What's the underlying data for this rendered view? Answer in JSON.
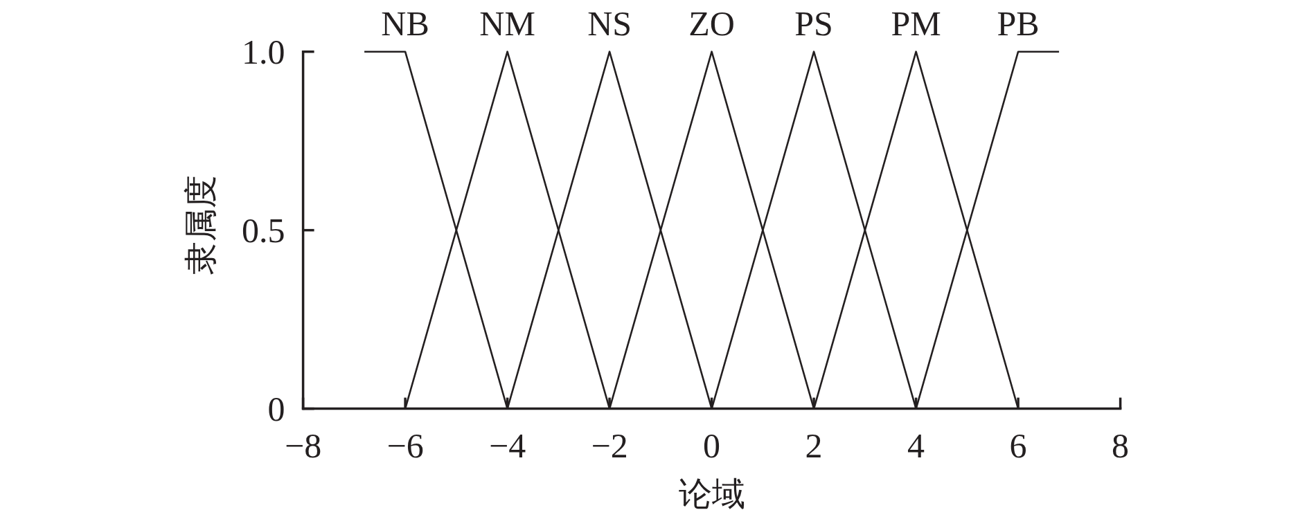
{
  "chart_data": {
    "type": "line",
    "xlabel": "论域",
    "ylabel": "隶属度",
    "xlim": [
      -8,
      8
    ],
    "ylim": [
      0,
      1
    ],
    "xticks": [
      {
        "value": -8,
        "label": "−8"
      },
      {
        "value": -6,
        "label": "−6"
      },
      {
        "value": -4,
        "label": "−4"
      },
      {
        "value": -2,
        "label": "−2"
      },
      0,
      2,
      4,
      6,
      8
    ],
    "yticks": [
      0,
      0.5,
      {
        "value": 1,
        "label": "1.0"
      }
    ],
    "line_style": "solid",
    "series": [
      {
        "name": "NB",
        "color": "#231f20",
        "x": [
          -6.8,
          -6,
          -4
        ],
        "values": [
          1,
          1,
          0
        ]
      },
      {
        "name": "NM",
        "color": "#231f20",
        "x": [
          -6,
          -4,
          -2
        ],
        "values": [
          0,
          1,
          0
        ]
      },
      {
        "name": "NS",
        "color": "#231f20",
        "x": [
          -4,
          -2,
          0
        ],
        "values": [
          0,
          1,
          0
        ]
      },
      {
        "name": "ZO",
        "color": "#231f20",
        "x": [
          -2,
          0,
          2
        ],
        "values": [
          0,
          1,
          0
        ]
      },
      {
        "name": "PS",
        "color": "#231f20",
        "x": [
          0,
          2,
          4
        ],
        "values": [
          0,
          1,
          0
        ]
      },
      {
        "name": "PM",
        "color": "#231f20",
        "x": [
          2,
          4,
          6
        ],
        "values": [
          0,
          1,
          0
        ]
      },
      {
        "name": "PB",
        "color": "#231f20",
        "x": [
          4,
          6,
          6.8
        ],
        "values": [
          0,
          1,
          1
        ]
      }
    ]
  }
}
